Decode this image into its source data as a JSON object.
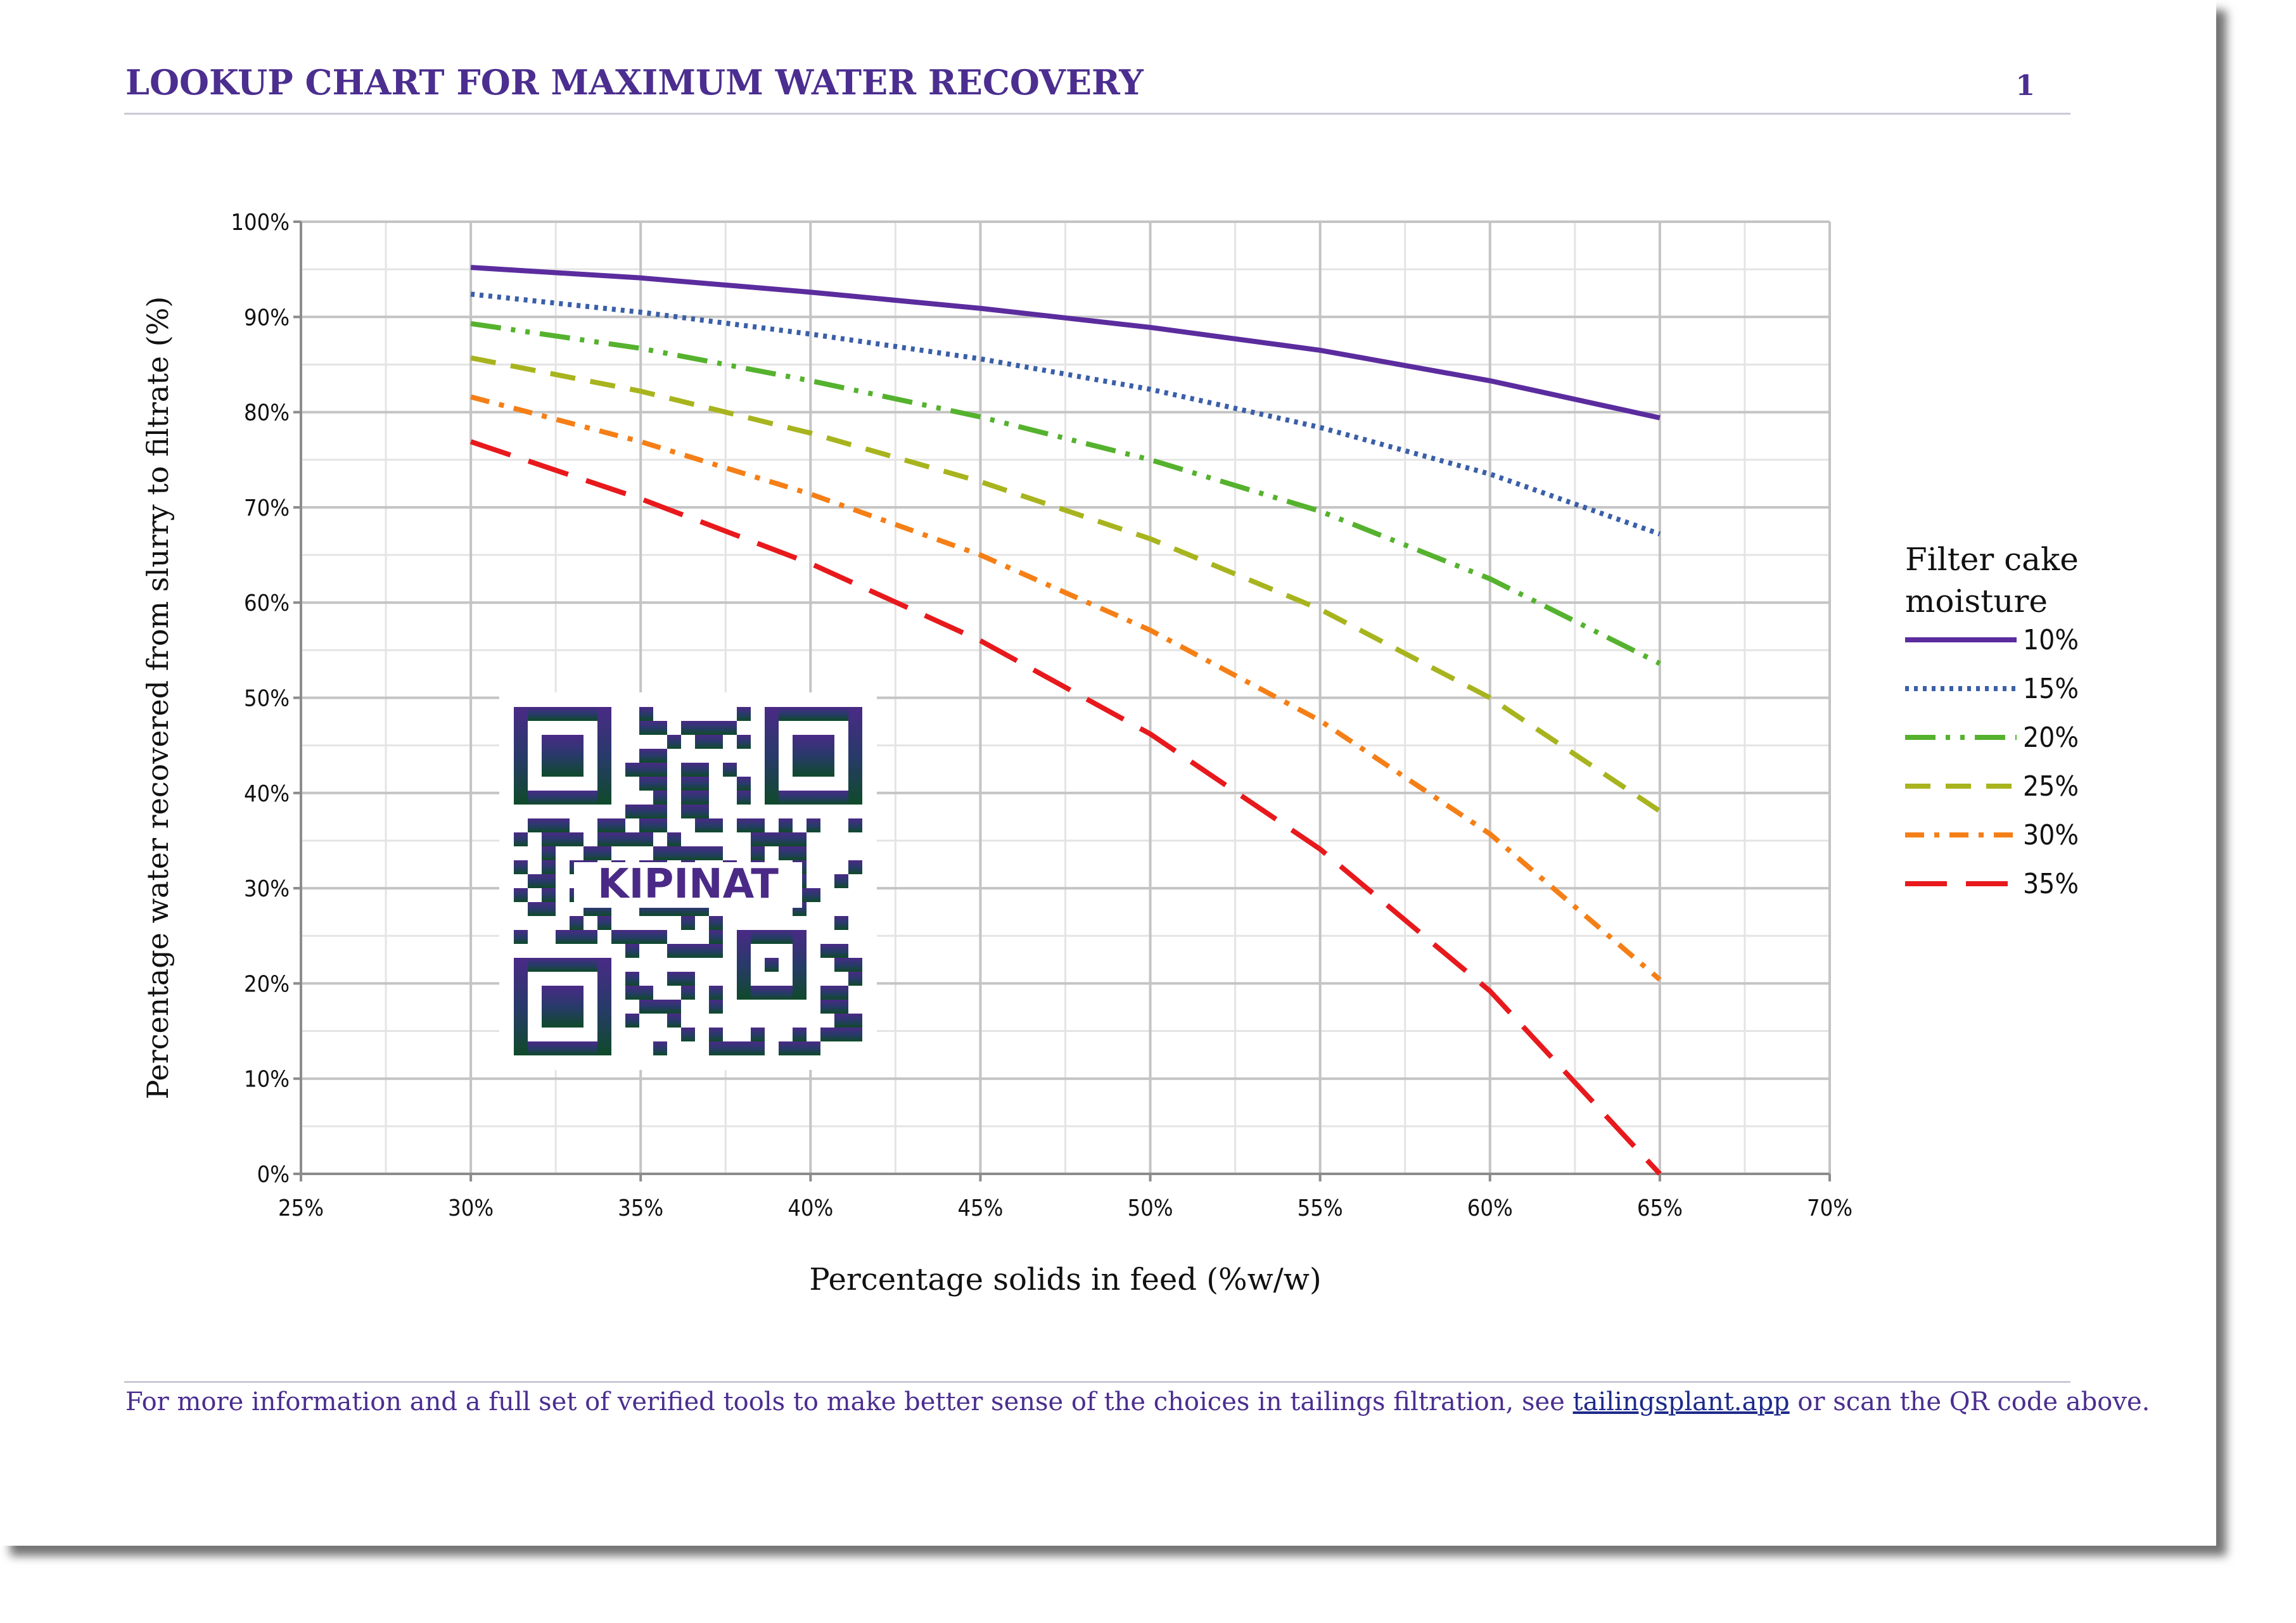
{
  "header": {
    "title": "LOOKUP CHART FOR MAXIMUM WATER RECOVERY",
    "page_number": "1"
  },
  "footer": {
    "text_before": "For more information and a full set of verified tools to make better sense of the choices in tailings filtration, see ",
    "link_text": "tailingsplant.app",
    "text_after": " or scan the QR code above."
  },
  "qr": {
    "label": "KIPINAT"
  },
  "colors": {
    "heading": "#4b2e8f",
    "link": "#1e2a8a"
  },
  "chart_data": {
    "type": "line",
    "title": "",
    "xlabel": "Percentage solids in feed (%w/w)",
    "ylabel": "Percentage water recovered from slurry to filtrate (%)",
    "xlim": [
      25,
      70
    ],
    "ylim": [
      0,
      100
    ],
    "x_ticks": [
      "25%",
      "30%",
      "35%",
      "40%",
      "45%",
      "50%",
      "55%",
      "60%",
      "65%",
      "70%"
    ],
    "y_ticks": [
      "0%",
      "10%",
      "20%",
      "30%",
      "40%",
      "50%",
      "60%",
      "70%",
      "80%",
      "90%",
      "100%"
    ],
    "x": [
      30,
      35,
      40,
      45,
      50,
      55,
      60,
      65
    ],
    "legend_title": "Filter cake moisture",
    "legend_position": "right",
    "series": [
      {
        "name": "10%",
        "color": "#5b2c9e",
        "style": "solid",
        "values": [
          95.2,
          94.1,
          92.6,
          90.9,
          88.9,
          86.5,
          83.3,
          79.4
        ]
      },
      {
        "name": "15%",
        "color": "#3a5fa8",
        "style": "dotted",
        "values": [
          92.4,
          90.5,
          88.2,
          85.6,
          82.4,
          78.4,
          73.5,
          67.2
        ]
      },
      {
        "name": "20%",
        "color": "#55b22e",
        "style": "dashdotdot",
        "values": [
          89.3,
          86.7,
          83.3,
          79.5,
          75.0,
          69.6,
          62.5,
          53.6
        ]
      },
      {
        "name": "25%",
        "color": "#a8b41e",
        "style": "dashed",
        "values": [
          85.7,
          82.2,
          77.8,
          72.7,
          66.7,
          59.3,
          50.0,
          38.1
        ]
      },
      {
        "name": "30%",
        "color": "#f57f17",
        "style": "dashdot",
        "values": [
          81.6,
          76.9,
          71.4,
          65.0,
          57.1,
          47.6,
          35.7,
          20.4
        ]
      },
      {
        "name": "35%",
        "color": "#e8191c",
        "style": "longdash",
        "values": [
          76.9,
          70.9,
          64.1,
          56.0,
          46.2,
          34.1,
          19.2,
          0.0
        ]
      }
    ]
  }
}
